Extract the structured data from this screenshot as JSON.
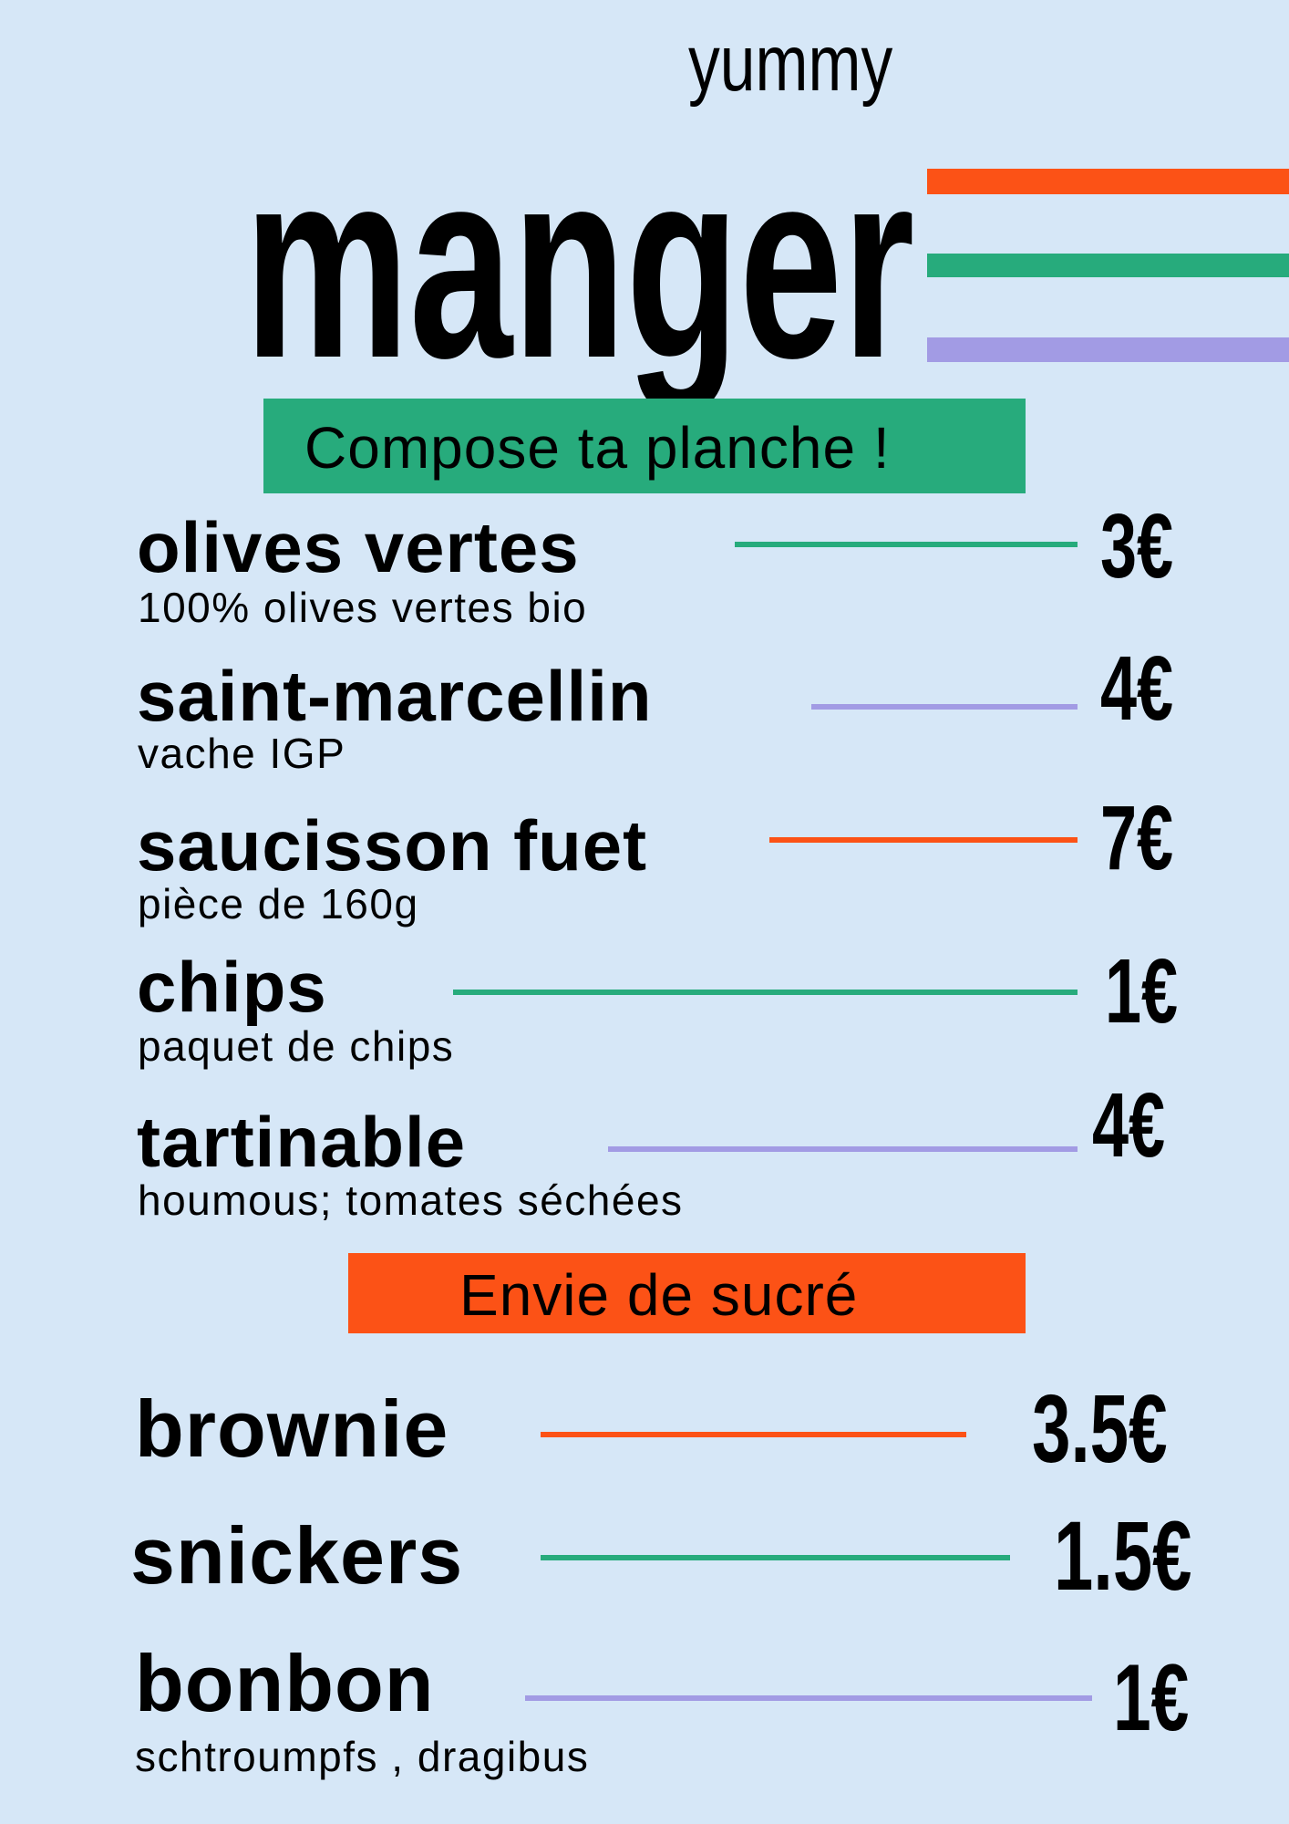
{
  "header": {
    "kicker": "yummy",
    "title": "manger"
  },
  "colors": {
    "background": "#d6e7f7",
    "orange": "#fc5216",
    "green": "#27ab7c",
    "purple": "#a29be4"
  },
  "sections": [
    {
      "title": "Compose ta planche !",
      "color": "#27ab7c",
      "items": [
        {
          "name": "olives vertes",
          "description": "100% olives vertes bio",
          "price": "3€",
          "line_color": "#27ab7c"
        },
        {
          "name": "saint-marcellin",
          "description": "vache IGP",
          "price": "4€",
          "line_color": "#a29be4"
        },
        {
          "name": "saucisson fuet",
          "description": "pièce de 160g",
          "price": "7€",
          "line_color": "#fc5216"
        },
        {
          "name": "chips",
          "description": "paquet de chips",
          "price": "1€",
          "line_color": "#27ab7c"
        },
        {
          "name": "tartinable",
          "description": "houmous; tomates séchées",
          "price": "4€",
          "line_color": "#a29be4"
        }
      ]
    },
    {
      "title": "Envie de sucré",
      "color": "#fc5216",
      "items": [
        {
          "name": "brownie",
          "price": "3.5€",
          "line_color": "#fc5216"
        },
        {
          "name": "snickers",
          "price": "1.5€",
          "line_color": "#27ab7c"
        },
        {
          "name": "bonbon",
          "description": "schtroumpfs , dragibus",
          "price": "1€",
          "line_color": "#a29be4"
        }
      ]
    }
  ]
}
